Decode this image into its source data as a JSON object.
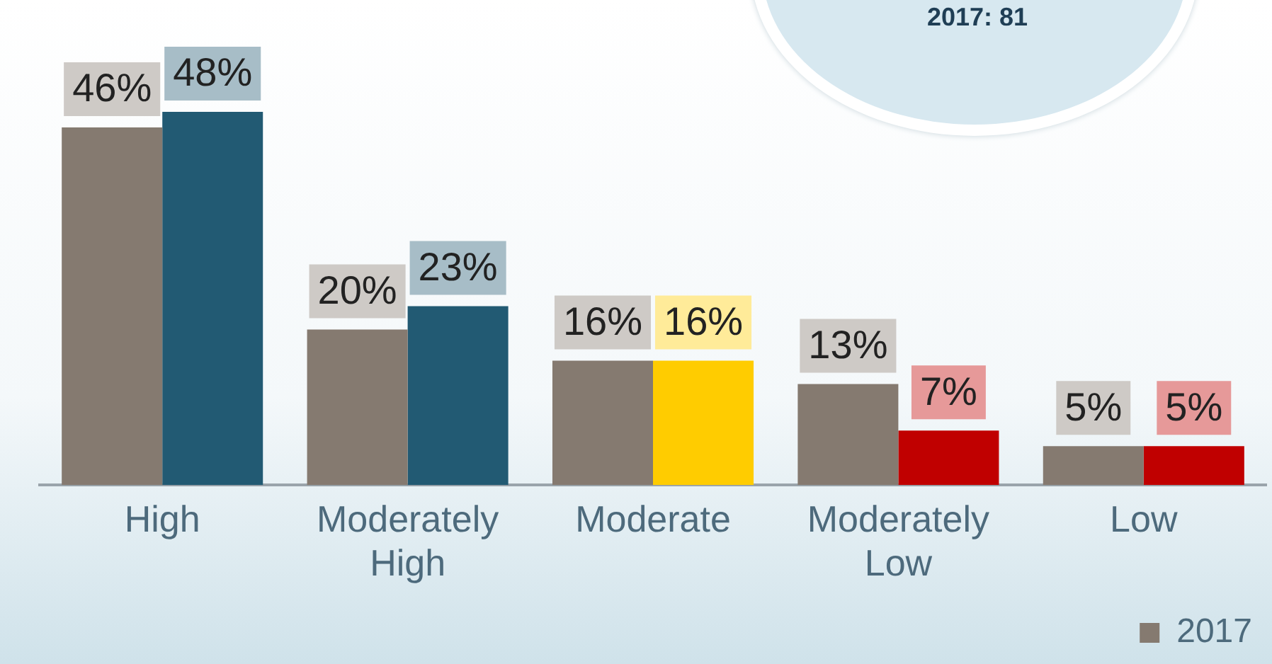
{
  "chart_data": {
    "type": "bar",
    "categories": [
      "High",
      "Moderately High",
      "Moderate",
      "Moderately Low",
      "Low"
    ],
    "series": [
      {
        "name": "2017",
        "color": "#857a70",
        "values": [
          46,
          20,
          16,
          13,
          5
        ],
        "value_labels": [
          "46%",
          "20%",
          "16%",
          "13%",
          "5%"
        ]
      },
      {
        "colors": [
          "#225a73",
          "#225a73",
          "#ffcc00",
          "#c00000",
          "#c00000"
        ],
        "values": [
          48,
          23,
          16,
          7,
          5
        ],
        "value_labels": [
          "48%",
          "23%",
          "16%",
          "7%",
          "5%"
        ]
      }
    ],
    "legend": "bottom right",
    "grid": false,
    "annotations": [
      "2017: 81"
    ]
  }
}
